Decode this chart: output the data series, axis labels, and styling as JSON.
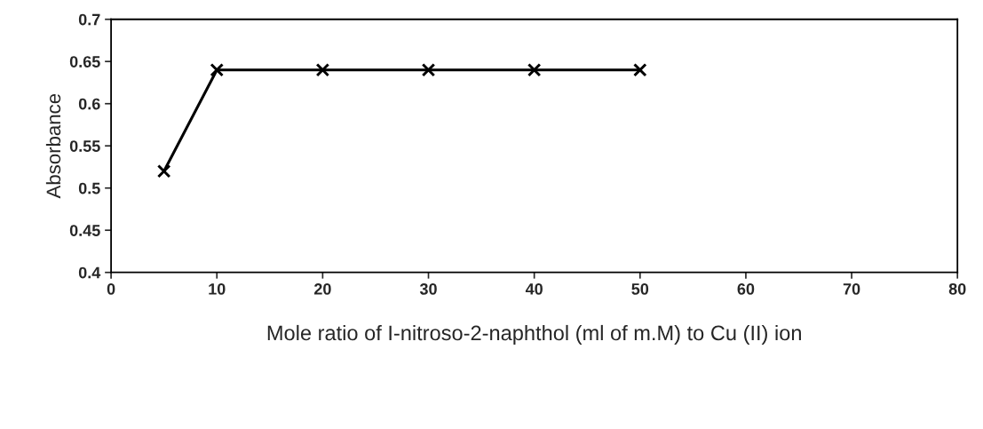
{
  "chart_data": {
    "type": "line",
    "xlabel": "Mole ratio of I-nitroso-2-naphthol (ml of m.M) to Cu (II) ion",
    "ylabel": "Absorbance",
    "x": [
      5,
      10,
      20,
      30,
      40,
      50
    ],
    "series": [
      {
        "color": "#000000",
        "values": [
          0.52,
          0.64,
          0.64,
          0.64,
          0.64,
          0.64
        ]
      }
    ],
    "xlim": [
      0,
      80
    ],
    "xticks": [
      0,
      10,
      20,
      30,
      40,
      50,
      60,
      70,
      80
    ],
    "ylim": [
      0.4,
      0.7
    ],
    "yticks": [
      0.4,
      0.45,
      0.5,
      0.55,
      0.6,
      0.65,
      0.7
    ],
    "grid": false,
    "marker": "cross",
    "line_style": "solid"
  }
}
